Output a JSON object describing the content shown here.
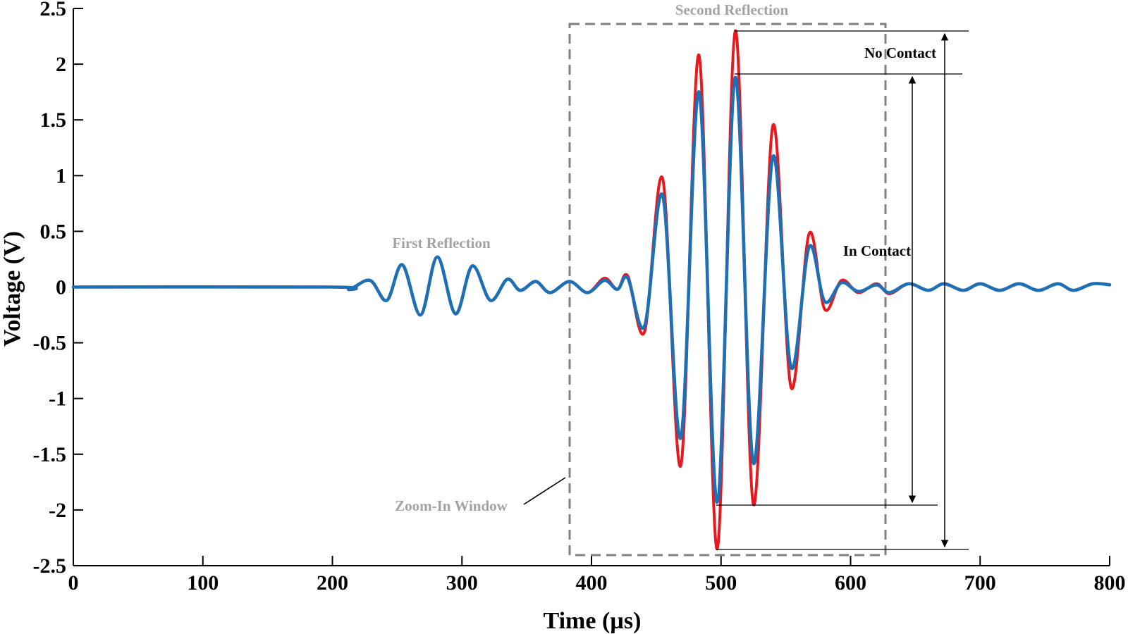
{
  "chart_data": {
    "type": "line",
    "title": "",
    "xlabel": "Time (µs)",
    "ylabel": "Voltage (V)",
    "xlim": [
      0,
      800
    ],
    "ylim": [
      -2.5,
      2.5
    ],
    "x_ticks": [
      0,
      100,
      200,
      300,
      400,
      500,
      600,
      700,
      800
    ],
    "x_tick_labels": [
      "0",
      "100",
      "200",
      "300",
      "400",
      "500",
      "600",
      "700",
      "800"
    ],
    "y_ticks": [
      2.5,
      2,
      1.5,
      1,
      0.5,
      0,
      -0.5,
      -1,
      -1.5,
      -2,
      -2.5
    ],
    "y_tick_labels": [
      "2.5",
      "2",
      "1.5",
      "1",
      "0.5",
      "0",
      "-0.5",
      "-1",
      "-1.5",
      "-2",
      "-2.5"
    ],
    "grid": false,
    "legend": "none",
    "series": [
      {
        "color": "#e8191e",
        "x": [
          0,
          200,
          213,
          229,
          242,
          254,
          268,
          281,
          295,
          308,
          322,
          335,
          345,
          357,
          368,
          383,
          397,
          410,
          420,
          428,
          441,
          455,
          469,
          483,
          497,
          511,
          525,
          540,
          554,
          568,
          580,
          593,
          606,
          620,
          630,
          645,
          660,
          672,
          687,
          700,
          715,
          730,
          745,
          760,
          772,
          787,
          800
        ],
        "y": [
          0,
          0,
          -0.02,
          0.06,
          -0.12,
          0.2,
          -0.25,
          0.27,
          -0.24,
          0.19,
          -0.12,
          0.07,
          -0.03,
          0.05,
          -0.05,
          0.05,
          -0.05,
          0.08,
          -0.02,
          0.1,
          -0.4,
          0.97,
          -1.6,
          2.08,
          -2.35,
          2.3,
          -1.95,
          1.45,
          -0.9,
          0.48,
          -0.2,
          0.06,
          -0.05,
          0.03,
          -0.06,
          0.03,
          -0.03,
          0.03,
          -0.03,
          0.03,
          -0.03,
          0.03,
          -0.03,
          0.03,
          -0.03,
          0.03,
          0.02
        ]
      },
      {
        "color": "#1f6fb5",
        "x": [
          0,
          200,
          213,
          229,
          242,
          254,
          268,
          281,
          295,
          308,
          322,
          335,
          345,
          357,
          368,
          383,
          397,
          410,
          420,
          428,
          441,
          455,
          469,
          483,
          497,
          511,
          525,
          540,
          554,
          568,
          580,
          593,
          606,
          620,
          630,
          645,
          660,
          672,
          687,
          700,
          715,
          730,
          745,
          760,
          772,
          787,
          800
        ],
        "y": [
          0,
          0,
          -0.02,
          0.06,
          -0.12,
          0.2,
          -0.25,
          0.27,
          -0.24,
          0.19,
          -0.12,
          0.07,
          -0.03,
          0.05,
          -0.05,
          0.05,
          -0.05,
          0.06,
          -0.02,
          0.08,
          -0.35,
          0.82,
          -1.35,
          1.75,
          -1.93,
          1.88,
          -1.58,
          1.17,
          -0.72,
          0.36,
          -0.13,
          0.04,
          -0.04,
          0.02,
          -0.05,
          0.03,
          -0.03,
          0.03,
          -0.03,
          0.03,
          -0.03,
          0.03,
          -0.03,
          0.03,
          -0.03,
          0.03,
          0.02
        ]
      }
    ],
    "annotations": {
      "first_reflection": "First Reflection",
      "second_reflection": "Second Reflection",
      "zoom_window": "Zoom-In Window",
      "no_contact": "No Contact",
      "in_contact": "In Contact"
    }
  }
}
